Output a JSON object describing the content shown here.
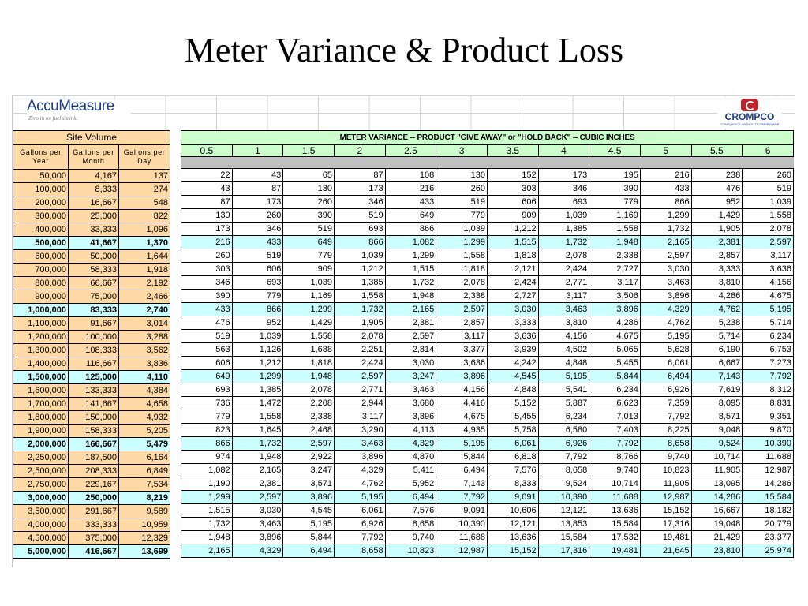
{
  "slide": {
    "title": "Meter Variance & Product Loss"
  },
  "logos": {
    "accumeasure": {
      "name": "AccuMeasure",
      "tagline": "Zero in on fuel shrink."
    },
    "crompco": {
      "name": "CROMPCO",
      "tagline": "COMPLIANCE WITHOUT COMPROMISE"
    }
  },
  "site_volume": {
    "title": "Site Volume",
    "headers": [
      "Gallons per Year",
      "Gallons per Month",
      "Gallons per Day"
    ],
    "rows": [
      [
        "50,000",
        "4,167",
        "137"
      ],
      [
        "100,000",
        "8,333",
        "274"
      ],
      [
        "200,000",
        "16,667",
        "548"
      ],
      [
        "300,000",
        "25,000",
        "822"
      ],
      [
        "400,000",
        "33,333",
        "1,096"
      ],
      [
        "500,000",
        "41,667",
        "1,370"
      ],
      [
        "600,000",
        "50,000",
        "1,644"
      ],
      [
        "700,000",
        "58,333",
        "1,918"
      ],
      [
        "800,000",
        "66,667",
        "2,192"
      ],
      [
        "900,000",
        "75,000",
        "2,466"
      ],
      [
        "1,000,000",
        "83,333",
        "2,740"
      ],
      [
        "1,100,000",
        "91,667",
        "3,014"
      ],
      [
        "1,200,000",
        "100,000",
        "3,288"
      ],
      [
        "1,300,000",
        "108,333",
        "3,562"
      ],
      [
        "1,400,000",
        "116,667",
        "3,836"
      ],
      [
        "1,500,000",
        "125,000",
        "4,110"
      ],
      [
        "1,600,000",
        "133,333",
        "4,384"
      ],
      [
        "1,700,000",
        "141,667",
        "4,658"
      ],
      [
        "1,800,000",
        "150,000",
        "4,932"
      ],
      [
        "1,900,000",
        "158,333",
        "5,205"
      ],
      [
        "2,000,000",
        "166,667",
        "5,479"
      ],
      [
        "2,250,000",
        "187,500",
        "6,164"
      ],
      [
        "2,500,000",
        "208,333",
        "6,849"
      ],
      [
        "2,750,000",
        "229,167",
        "7,534"
      ],
      [
        "3,000,000",
        "250,000",
        "8,219"
      ],
      [
        "3,500,000",
        "291,667",
        "9,589"
      ],
      [
        "4,000,000",
        "333,333",
        "10,959"
      ],
      [
        "4,500,000",
        "375,000",
        "12,329"
      ],
      [
        "5,000,000",
        "416,667",
        "13,699"
      ]
    ],
    "highlighted_rows": [
      5,
      10,
      15,
      20,
      24,
      28
    ]
  },
  "meter_variance": {
    "title": "METER VARIANCE -- PRODUCT \"GIVE AWAY\" or \"HOLD BACK\" -- CUBIC INCHES",
    "variances": [
      "0.5",
      "1",
      "1.5",
      "2",
      "2.5",
      "3",
      "3.5",
      "4",
      "4.5",
      "5",
      "5.5",
      "6"
    ],
    "rows": [
      [
        "22",
        "43",
        "65",
        "87",
        "108",
        "130",
        "152",
        "173",
        "195",
        "216",
        "238",
        "260"
      ],
      [
        "43",
        "87",
        "130",
        "173",
        "216",
        "260",
        "303",
        "346",
        "390",
        "433",
        "476",
        "519"
      ],
      [
        "87",
        "173",
        "260",
        "346",
        "433",
        "519",
        "606",
        "693",
        "779",
        "866",
        "952",
        "1,039"
      ],
      [
        "130",
        "260",
        "390",
        "519",
        "649",
        "779",
        "909",
        "1,039",
        "1,169",
        "1,299",
        "1,429",
        "1,558"
      ],
      [
        "173",
        "346",
        "519",
        "693",
        "866",
        "1,039",
        "1,212",
        "1,385",
        "1,558",
        "1,732",
        "1,905",
        "2,078"
      ],
      [
        "216",
        "433",
        "649",
        "866",
        "1,082",
        "1,299",
        "1,515",
        "1,732",
        "1,948",
        "2,165",
        "2,381",
        "2,597"
      ],
      [
        "260",
        "519",
        "779",
        "1,039",
        "1,299",
        "1,558",
        "1,818",
        "2,078",
        "2,338",
        "2,597",
        "2,857",
        "3,117"
      ],
      [
        "303",
        "606",
        "909",
        "1,212",
        "1,515",
        "1,818",
        "2,121",
        "2,424",
        "2,727",
        "3,030",
        "3,333",
        "3,636"
      ],
      [
        "346",
        "693",
        "1,039",
        "1,385",
        "1,732",
        "2,078",
        "2,424",
        "2,771",
        "3,117",
        "3,463",
        "3,810",
        "4,156"
      ],
      [
        "390",
        "779",
        "1,169",
        "1,558",
        "1,948",
        "2,338",
        "2,727",
        "3,117",
        "3,506",
        "3,896",
        "4,286",
        "4,675"
      ],
      [
        "433",
        "866",
        "1,299",
        "1,732",
        "2,165",
        "2,597",
        "3,030",
        "3,463",
        "3,896",
        "4,329",
        "4,762",
        "5,195"
      ],
      [
        "476",
        "952",
        "1,429",
        "1,905",
        "2,381",
        "2,857",
        "3,333",
        "3,810",
        "4,286",
        "4,762",
        "5,238",
        "5,714"
      ],
      [
        "519",
        "1,039",
        "1,558",
        "2,078",
        "2,597",
        "3,117",
        "3,636",
        "4,156",
        "4,675",
        "5,195",
        "5,714",
        "6,234"
      ],
      [
        "563",
        "1,126",
        "1,688",
        "2,251",
        "2,814",
        "3,377",
        "3,939",
        "4,502",
        "5,065",
        "5,628",
        "6,190",
        "6,753"
      ],
      [
        "606",
        "1,212",
        "1,818",
        "2,424",
        "3,030",
        "3,636",
        "4,242",
        "4,848",
        "5,455",
        "6,061",
        "6,667",
        "7,273"
      ],
      [
        "649",
        "1,299",
        "1,948",
        "2,597",
        "3,247",
        "3,896",
        "4,545",
        "5,195",
        "5,844",
        "6,494",
        "7,143",
        "7,792"
      ],
      [
        "693",
        "1,385",
        "2,078",
        "2,771",
        "3,463",
        "4,156",
        "4,848",
        "5,541",
        "6,234",
        "6,926",
        "7,619",
        "8,312"
      ],
      [
        "736",
        "1,472",
        "2,208",
        "2,944",
        "3,680",
        "4,416",
        "5,152",
        "5,887",
        "6,623",
        "7,359",
        "8,095",
        "8,831"
      ],
      [
        "779",
        "1,558",
        "2,338",
        "3,117",
        "3,896",
        "4,675",
        "5,455",
        "6,234",
        "7,013",
        "7,792",
        "8,571",
        "9,351"
      ],
      [
        "823",
        "1,645",
        "2,468",
        "3,290",
        "4,113",
        "4,935",
        "5,758",
        "6,580",
        "7,403",
        "8,225",
        "9,048",
        "9,870"
      ],
      [
        "866",
        "1,732",
        "2,597",
        "3,463",
        "4,329",
        "5,195",
        "6,061",
        "6,926",
        "7,792",
        "8,658",
        "9,524",
        "10,390"
      ],
      [
        "974",
        "1,948",
        "2,922",
        "3,896",
        "4,870",
        "5,844",
        "6,818",
        "7,792",
        "8,766",
        "9,740",
        "10,714",
        "11,688"
      ],
      [
        "1,082",
        "2,165",
        "3,247",
        "4,329",
        "5,411",
        "6,494",
        "7,576",
        "8,658",
        "9,740",
        "10,823",
        "11,905",
        "12,987"
      ],
      [
        "1,190",
        "2,381",
        "3,571",
        "4,762",
        "5,952",
        "7,143",
        "8,333",
        "9,524",
        "10,714",
        "11,905",
        "13,095",
        "14,286"
      ],
      [
        "1,299",
        "2,597",
        "3,896",
        "5,195",
        "6,494",
        "7,792",
        "9,091",
        "10,390",
        "11,688",
        "12,987",
        "14,286",
        "15,584"
      ],
      [
        "1,515",
        "3,030",
        "4,545",
        "6,061",
        "7,576",
        "9,091",
        "10,606",
        "12,121",
        "13,636",
        "15,152",
        "16,667",
        "18,182"
      ],
      [
        "1,732",
        "3,463",
        "5,195",
        "6,926",
        "8,658",
        "10,390",
        "12,121",
        "13,853",
        "15,584",
        "17,316",
        "19,048",
        "20,779"
      ],
      [
        "1,948",
        "3,896",
        "5,844",
        "7,792",
        "9,740",
        "11,688",
        "13,636",
        "15,584",
        "17,532",
        "19,481",
        "21,429",
        "23,377"
      ],
      [
        "2,165",
        "4,329",
        "6,494",
        "8,658",
        "10,823",
        "12,987",
        "15,152",
        "17,316",
        "19,481",
        "21,645",
        "23,810",
        "25,974"
      ]
    ]
  },
  "colors": {
    "site_volume_fill": "#ffd9a6",
    "highlight_row_fill": "#ccffff",
    "meter_header_fill": "#ccffcc",
    "spacer_fill": "#c0c0c0"
  }
}
